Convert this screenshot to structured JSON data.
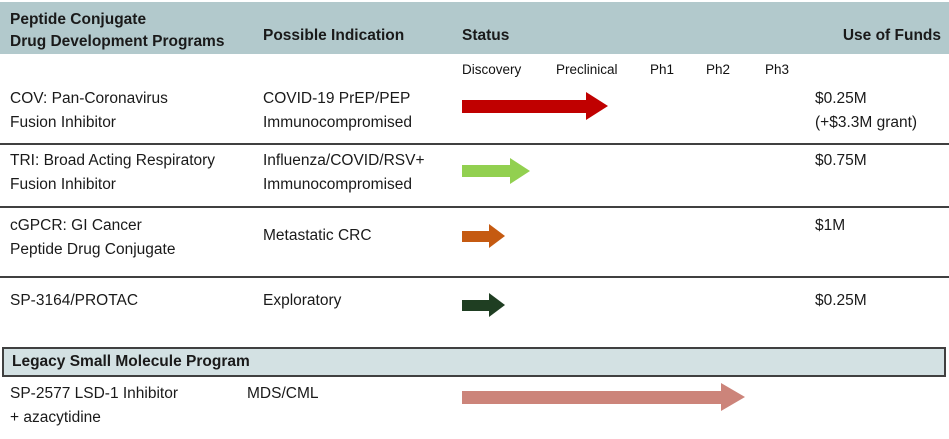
{
  "header": {
    "program_line1": "Peptide Conjugate",
    "program_line2": "Drug Development Programs",
    "indication": "Possible Indication",
    "status": "Status",
    "funds": "Use of Funds"
  },
  "phases": [
    "Discovery",
    "Preclinical",
    "Ph1",
    "Ph2",
    "Ph3"
  ],
  "rows": [
    {
      "program_line1": "COV: Pan-Coronavirus",
      "program_line2": "Fusion Inhibitor",
      "indication_line1": "COVID-19 PrEP/PEP",
      "indication_line2": "Immunocompromised",
      "funds_line1": "$0.25M",
      "funds_line2": "(+$3.3M grant)",
      "arrow": {
        "color": "#c00000",
        "phase_reached": "Preclinical",
        "length": 146,
        "body": 13,
        "head_w": 22,
        "head_h": 28
      }
    },
    {
      "program_line1": "TRI: Broad Acting Respiratory",
      "program_line2": "Fusion Inhibitor",
      "indication_line1": "Influenza/COVID/RSV+",
      "indication_line2": "Immunocompromised",
      "funds_line1": "$0.75M",
      "arrow": {
        "color": "#92d050",
        "phase_reached": "Discovery",
        "length": 68,
        "body": 12,
        "head_w": 20,
        "head_h": 26
      }
    },
    {
      "program_line1": "cGPCR: GI Cancer",
      "program_line2": "Peptide Drug Conjugate",
      "indication_line1": "Metastatic CRC",
      "funds_line1": "$1M",
      "arrow": {
        "color": "#c55a11",
        "phase_reached": "Discovery",
        "length": 43,
        "body": 11,
        "head_w": 16,
        "head_h": 24
      }
    },
    {
      "program_line1": "SP-3164/PROTAC",
      "indication_line1": "Exploratory",
      "funds_line1": "$0.25M",
      "arrow": {
        "color": "#1f3e22",
        "phase_reached": "Discovery",
        "length": 43,
        "body": 11,
        "head_w": 16,
        "head_h": 24
      }
    },
    {
      "program_line1": "SP-2577 LSD-1 Inhibitor",
      "program_line2": "+ azacytidine",
      "indication_line1": "MDS/CML",
      "arrow": {
        "color": "#cc847a",
        "phase_reached": "Ph2",
        "length": 283,
        "body": 13,
        "head_w": 24,
        "head_h": 28
      }
    }
  ],
  "legacy_section_title": "Legacy Small Molecule Program"
}
